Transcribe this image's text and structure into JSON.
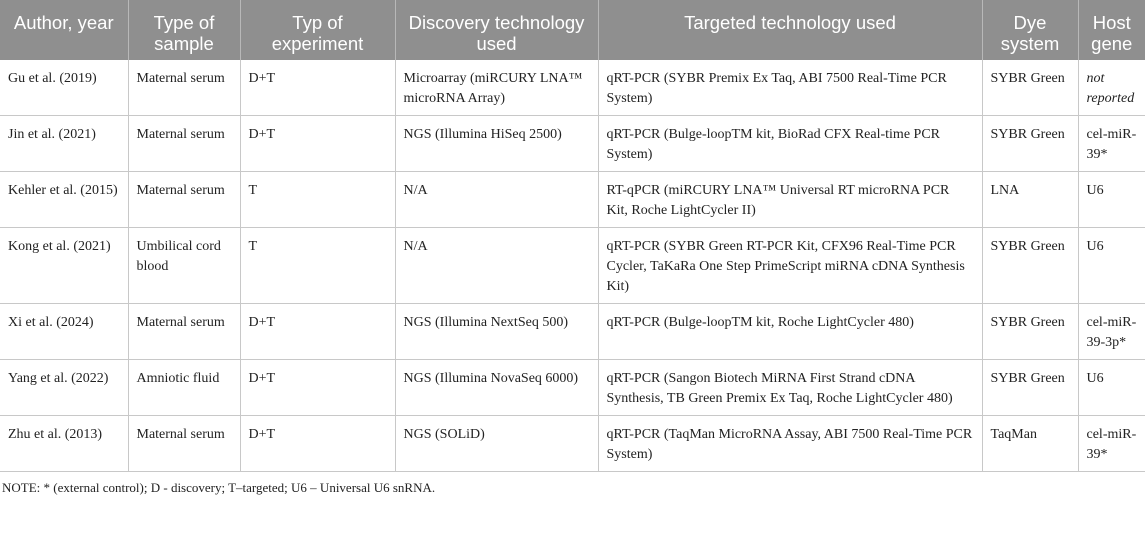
{
  "table": {
    "headers": [
      "Author, year",
      "Type of sample",
      "Typ of experiment",
      "Discovery technology used",
      "Targeted technology used",
      "Dye system",
      "Host gene"
    ],
    "rows": [
      [
        "Gu et al. (2019)",
        "Maternal serum",
        "D+T",
        "Microarray (miRCURY LNA™ microRNA Array)",
        "qRT-PCR (SYBR Premix Ex Taq, ABI 7500 Real-Time PCR System)",
        "SYBR Green",
        "not reported"
      ],
      [
        "Jin et al. (2021)",
        "Maternal serum",
        "D+T",
        "NGS (Illumina HiSeq 2500)",
        "qRT-PCR (Bulge-loopTM kit, BioRad CFX Real-time PCR System)",
        "SYBR Green",
        "cel-miR-39*"
      ],
      [
        "Kehler et al. (2015)",
        "Maternal serum",
        "T",
        "N/A",
        "RT-qPCR (miRCURY LNA™ Universal RT microRNA PCR Kit, Roche LightCycler II)",
        "LNA",
        "U6"
      ],
      [
        "Kong et al. (2021)",
        "Umbilical cord blood",
        "T",
        "N/A",
        "qRT-PCR (SYBR Green RT-PCR Kit, CFX96 Real-Time PCR Cycler, TaKaRa One Step PrimeScript miRNA cDNA Synthesis Kit)",
        "SYBR Green",
        "U6"
      ],
      [
        "Xi et al. (2024)",
        "Maternal serum",
        "D+T",
        "NGS (Illumina NextSeq 500)",
        "qRT-PCR (Bulge-loopTM kit, Roche LightCycler 480)",
        "SYBR Green",
        "cel-miR-39-3p*"
      ],
      [
        "Yang et al. (2022)",
        "Amniotic fluid",
        "D+T",
        "NGS (Illumina NovaSeq 6000)",
        "qRT-PCR (Sangon Biotech MiRNA First Strand cDNA Synthesis, TB Green Premix Ex Taq, Roche LightCycler 480)",
        "SYBR Green",
        "U6"
      ],
      [
        "Zhu et al. (2013)",
        "Maternal serum",
        "D+T",
        "NGS (SOLiD)",
        "qRT-PCR (TaqMan MicroRNA Assay, ABI 7500 Real-Time PCR System)",
        "TaqMan",
        "cel-miR-39*"
      ]
    ],
    "note": "NOTE: * (external control); D - discovery; T–targeted; U6 – Universal U6 snRNA."
  }
}
